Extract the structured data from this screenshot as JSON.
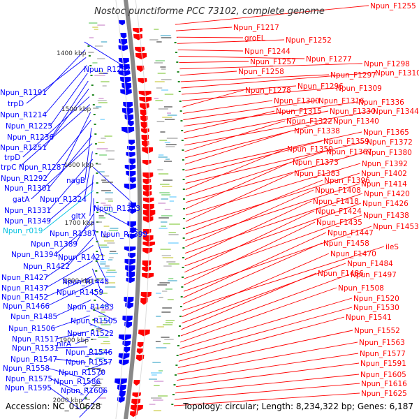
{
  "title": "Nostoc punctiforme PCC 73102, complete genome",
  "accession": "Accession: NC_010628",
  "summary": "Topology: circular; Length: 8,234,322 bp; Genes: 6,187",
  "colors": {
    "forward": "#ff0000",
    "reverse": "#0000ff",
    "special": "#00c0e0",
    "backbone": "#888888"
  },
  "ticks": [
    {
      "label": "1400 kbp"
    },
    {
      "label": "1500 kbp"
    },
    {
      "label": "1600 kbp"
    },
    {
      "label": "1700 kbp"
    },
    {
      "label": "1800 kbp"
    },
    {
      "label": "1900 kbp"
    },
    {
      "label": "2000 kbp"
    }
  ],
  "left_labels": [
    {
      "text": "Npun_R1202",
      "c": "b"
    },
    {
      "text": "Npun_R1191",
      "c": "b"
    },
    {
      "text": "trpD",
      "c": "b"
    },
    {
      "text": "Npun_R1214",
      "c": "b"
    },
    {
      "text": "Npun_R1225",
      "c": "b"
    },
    {
      "text": "Npun_R1236",
      "c": "b"
    },
    {
      "text": "Npun_R1251",
      "c": "b"
    },
    {
      "text": "trpD",
      "c": "b"
    },
    {
      "text": "trpC",
      "c": "b"
    },
    {
      "text": "Npun_R1287",
      "c": "b"
    },
    {
      "text": "Npun_R1292",
      "c": "b"
    },
    {
      "text": "nagB",
      "c": "b"
    },
    {
      "text": "Npun_R1301",
      "c": "b"
    },
    {
      "text": "gatA",
      "c": "b"
    },
    {
      "text": "Npun_R1324",
      "c": "b"
    },
    {
      "text": "Npun_R1331",
      "c": "b"
    },
    {
      "text": "Npun_R1363",
      "c": "b"
    },
    {
      "text": "gltX",
      "c": "b"
    },
    {
      "text": "Npun_R1349",
      "c": "b"
    },
    {
      "text": "Npun_r019",
      "c": "c"
    },
    {
      "text": "Npun_R1387",
      "c": "b"
    },
    {
      "text": "Npun_R1399",
      "c": "b"
    },
    {
      "text": "Npun_R1389",
      "c": "b"
    },
    {
      "text": "Npun_R1394",
      "c": "b"
    },
    {
      "text": "Npun_R1421",
      "c": "b"
    },
    {
      "text": "Npun_R1422",
      "c": "b"
    },
    {
      "text": "Npun_R1427",
      "c": "b"
    },
    {
      "text": "Npun_R1448",
      "c": "b"
    },
    {
      "text": "Npun_R1437",
      "c": "b"
    },
    {
      "text": "Npun_R1459",
      "c": "b"
    },
    {
      "text": "Npun_R1452",
      "c": "b"
    },
    {
      "text": "Npun_R1466",
      "c": "b"
    },
    {
      "text": "Npun_R1483",
      "c": "b"
    },
    {
      "text": "Npun_R1485",
      "c": "b"
    },
    {
      "text": "Npun_R1505",
      "c": "b"
    },
    {
      "text": "Npun_R1506",
      "c": "b"
    },
    {
      "text": "Npun_R1522",
      "c": "b"
    },
    {
      "text": "Npun_R1517",
      "c": "b"
    },
    {
      "text": "nirA",
      "c": "b"
    },
    {
      "text": "Npun_R1531",
      "c": "b"
    },
    {
      "text": "Npun_R1546",
      "c": "b"
    },
    {
      "text": "Npun_R1547",
      "c": "b"
    },
    {
      "text": "Npun_R1557",
      "c": "b"
    },
    {
      "text": "Npun_R1558",
      "c": "b"
    },
    {
      "text": "Npun_R1570",
      "c": "b"
    },
    {
      "text": "Npun_R1575",
      "c": "b"
    },
    {
      "text": "Npun_R1586",
      "c": "b"
    },
    {
      "text": "Npun_R1595",
      "c": "b"
    },
    {
      "text": "Npun_R1606",
      "c": "b"
    }
  ],
  "right_labels": [
    {
      "text": "Npun_F1255"
    },
    {
      "text": "Npun_F1217"
    },
    {
      "text": "groEL"
    },
    {
      "text": "Npun_F1252"
    },
    {
      "text": "Npun_F1244"
    },
    {
      "text": "Npun_F1277"
    },
    {
      "text": "Npun_F1257"
    },
    {
      "text": "Npun_F1298"
    },
    {
      "text": "Npun_F1258"
    },
    {
      "text": "Npun_F1297"
    },
    {
      "text": "Npun_F1310"
    },
    {
      "text": "Npun_F1296"
    },
    {
      "text": "Npun_F1309"
    },
    {
      "text": "Npun_F1278"
    },
    {
      "text": "Npun_F1300"
    },
    {
      "text": "Npun_F1316"
    },
    {
      "text": "Npun_F1336"
    },
    {
      "text": "Npun_F1315"
    },
    {
      "text": "Npun_F1330"
    },
    {
      "text": "Npun_F1344"
    },
    {
      "text": "Npun_F1322"
    },
    {
      "text": "Npun_F1340"
    },
    {
      "text": "Npun_F1338"
    },
    {
      "text": "Npun_F1365"
    },
    {
      "text": "Npun_F1359"
    },
    {
      "text": "Npun_F1372"
    },
    {
      "text": "Npun_F1350"
    },
    {
      "text": "Npun_F1367"
    },
    {
      "text": "Npun_F1380"
    },
    {
      "text": "Npun_F1373"
    },
    {
      "text": "Npun_F1392"
    },
    {
      "text": "Npun_F1383"
    },
    {
      "text": "Npun_F1402"
    },
    {
      "text": "Npun_F1396"
    },
    {
      "text": "Npun_F1414"
    },
    {
      "text": "Npun_F1408"
    },
    {
      "text": "Npun_F1420"
    },
    {
      "text": "Npun_F1418"
    },
    {
      "text": "Npun_F1426"
    },
    {
      "text": "Npun_F1424"
    },
    {
      "text": "Npun_F1438"
    },
    {
      "text": "Npun_F1435"
    },
    {
      "text": "Npun_F1453"
    },
    {
      "text": "Npun_F1447"
    },
    {
      "text": "Npun_F1458"
    },
    {
      "text": "ileS"
    },
    {
      "text": "Npun_F1470"
    },
    {
      "text": "Npun_F1484"
    },
    {
      "text": "Npun_F1486"
    },
    {
      "text": "Npun_F1497"
    },
    {
      "text": "Npun_F1508"
    },
    {
      "text": "Npun_F1520"
    },
    {
      "text": "Npun_F1530"
    },
    {
      "text": "Npun_F1541"
    },
    {
      "text": "Npun_F1552"
    },
    {
      "text": "Npun_F1563"
    },
    {
      "text": "Npun_F1577"
    },
    {
      "text": "Npun_F1591"
    },
    {
      "text": "Npun_F1605"
    },
    {
      "text": "Npun_F1616"
    },
    {
      "text": "Npun_F1625"
    }
  ]
}
